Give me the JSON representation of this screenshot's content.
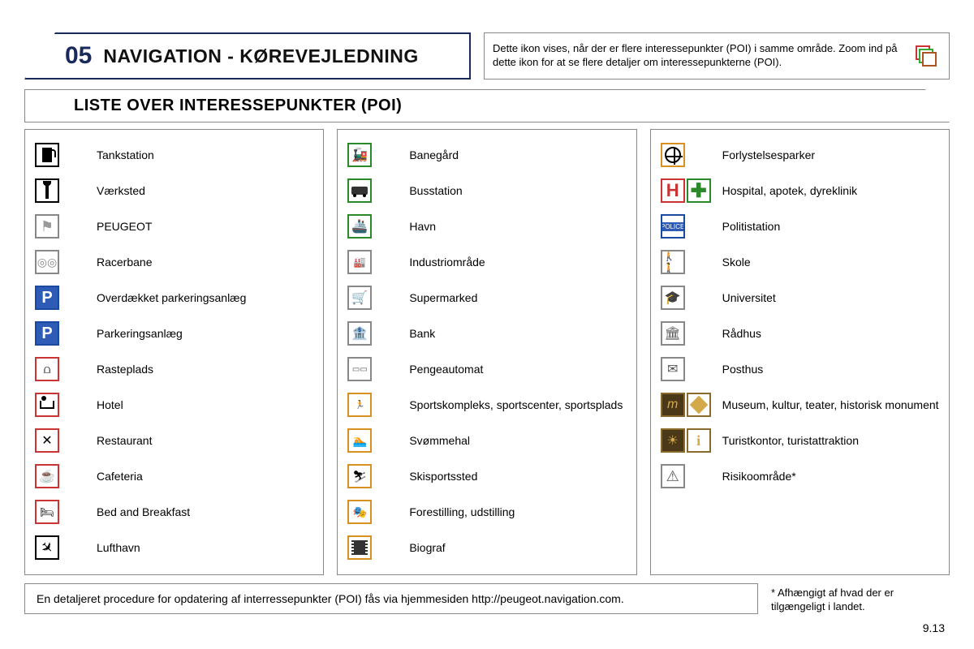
{
  "header": {
    "number": "05",
    "title": "NAVIGATION - KØREVEJLEDNING",
    "info_text": "Dette ikon vises, når der er flere interessepunkter (POI) i samme område. Zoom ind på dette ikon for at se flere detaljer om interessepunkterne (POI)."
  },
  "subtitle": "LISTE OVER INTERESSEPUNKTER (POI)",
  "columns": [
    [
      {
        "label": "Tankstation",
        "icons": [
          {
            "kind": "pump",
            "border": "black"
          }
        ]
      },
      {
        "label": "Værksted",
        "icons": [
          {
            "kind": "wrench",
            "border": "black"
          }
        ]
      },
      {
        "label": "PEUGEOT",
        "icons": [
          {
            "kind": "lion",
            "border": "gray"
          }
        ]
      },
      {
        "label": "Racerbane",
        "icons": [
          {
            "kind": "rings",
            "border": "gray"
          }
        ]
      },
      {
        "label": "Overdækket parkeringsanlæg",
        "icons": [
          {
            "kind": "p-roof",
            "border": "blue-fill"
          }
        ]
      },
      {
        "label": "Parkeringsanlæg",
        "icons": [
          {
            "kind": "p-letter",
            "border": "blue-fill"
          }
        ]
      },
      {
        "label": "Rasteplads",
        "icons": [
          {
            "kind": "picnic",
            "border": "red"
          }
        ]
      },
      {
        "label": "Hotel",
        "icons": [
          {
            "kind": "bed",
            "border": "red"
          }
        ]
      },
      {
        "label": "Restaurant",
        "icons": [
          {
            "kind": "fork",
            "border": "red"
          }
        ]
      },
      {
        "label": "Cafeteria",
        "icons": [
          {
            "kind": "cup",
            "border": "red"
          }
        ]
      },
      {
        "label": "Bed and Breakfast",
        "icons": [
          {
            "kind": "bb",
            "border": "red"
          }
        ]
      },
      {
        "label": "Lufthavn",
        "icons": [
          {
            "kind": "plane",
            "border": "black"
          }
        ]
      }
    ],
    [
      {
        "label": "Banegård",
        "icons": [
          {
            "kind": "train",
            "border": "green"
          }
        ]
      },
      {
        "label": "Busstation",
        "icons": [
          {
            "kind": "bus",
            "border": "green"
          }
        ]
      },
      {
        "label": "Havn",
        "icons": [
          {
            "kind": "ship",
            "border": "green"
          }
        ]
      },
      {
        "label": "Industriområde",
        "icons": [
          {
            "kind": "factory",
            "border": "gray"
          }
        ]
      },
      {
        "label": "Supermarked",
        "icons": [
          {
            "kind": "cart",
            "border": "gray"
          }
        ]
      },
      {
        "label": "Bank",
        "icons": [
          {
            "kind": "bank",
            "border": "gray"
          }
        ]
      },
      {
        "label": "Pengeautomat",
        "icons": [
          {
            "kind": "atm",
            "border": "gray"
          }
        ]
      },
      {
        "label": "Sportskompleks, sportscenter, sportsplads",
        "icons": [
          {
            "kind": "sport",
            "border": "orange"
          }
        ]
      },
      {
        "label": "Svømmehal",
        "icons": [
          {
            "kind": "swim",
            "border": "orange"
          }
        ]
      },
      {
        "label": "Skisportssted",
        "icons": [
          {
            "kind": "ski",
            "border": "orange"
          }
        ]
      },
      {
        "label": "Forestilling, udstilling",
        "icons": [
          {
            "kind": "masks",
            "border": "orange"
          }
        ]
      },
      {
        "label": "Biograf",
        "icons": [
          {
            "kind": "film",
            "border": "orange"
          }
        ]
      }
    ],
    [
      {
        "label": "Forlystelsesparker",
        "icons": [
          {
            "kind": "wheel",
            "border": "orange"
          }
        ]
      },
      {
        "label": "Hospital, apotek, dyreklinik",
        "icons": [
          {
            "kind": "h-letter",
            "border": "red"
          },
          {
            "kind": "cross",
            "border": "green"
          }
        ]
      },
      {
        "label": "Politistation",
        "icons": [
          {
            "kind": "police",
            "border": "blue"
          }
        ]
      },
      {
        "label": "Skole",
        "icons": [
          {
            "kind": "people",
            "border": "gray"
          }
        ]
      },
      {
        "label": "Universitet",
        "icons": [
          {
            "kind": "grad",
            "border": "gray"
          }
        ]
      },
      {
        "label": "Rådhus",
        "icons": [
          {
            "kind": "building",
            "border": "gray"
          }
        ]
      },
      {
        "label": "Posthus",
        "icons": [
          {
            "kind": "mail",
            "border": "gray"
          }
        ]
      },
      {
        "label": "Museum, kultur, teater, historisk monument",
        "icons": [
          {
            "kind": "m-museum",
            "border": "brown-fill"
          },
          {
            "kind": "diamond",
            "border": "brown"
          }
        ]
      },
      {
        "label": "Turistkontor, turistattraktion",
        "icons": [
          {
            "kind": "sun",
            "border": "brown-fill"
          },
          {
            "kind": "i-info",
            "border": "brown"
          }
        ]
      },
      {
        "label": "Risikoområde*",
        "icons": [
          {
            "kind": "tri",
            "border": "gray"
          }
        ]
      }
    ]
  ],
  "footer_note": "En detaljeret procedure for opdatering af interressepunkter (POI) fås via hjemmesiden http://peugeot.navigation.com.",
  "footnote": "* Afhængigt af hvad der er tilgængeligt i landet.",
  "page_number": "9.13"
}
